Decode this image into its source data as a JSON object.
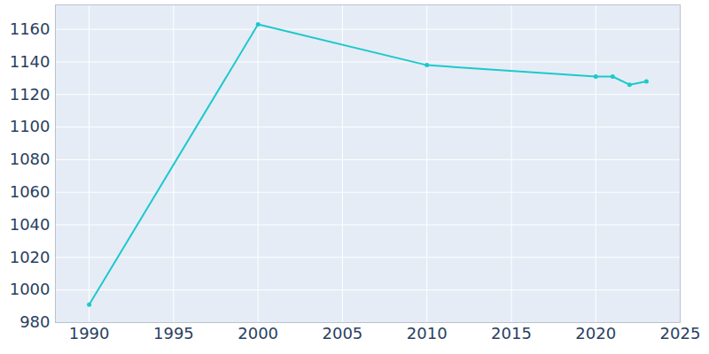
{
  "chart_data": {
    "type": "line",
    "x": [
      1990,
      2000,
      2010,
      2020,
      2021,
      2022,
      2023
    ],
    "values": [
      991,
      1163,
      1138,
      1131,
      1131,
      1126,
      1128
    ],
    "color": "#1cc9cc",
    "marker": "circle",
    "xlim": [
      1988,
      2025
    ],
    "xticks": [
      1990,
      1995,
      2000,
      2005,
      2010,
      2015,
      2020,
      2025
    ],
    "ylim": [
      980,
      1175
    ],
    "yticks": [
      980,
      1000,
      1020,
      1040,
      1060,
      1080,
      1100,
      1120,
      1140,
      1160
    ],
    "grid": true
  }
}
